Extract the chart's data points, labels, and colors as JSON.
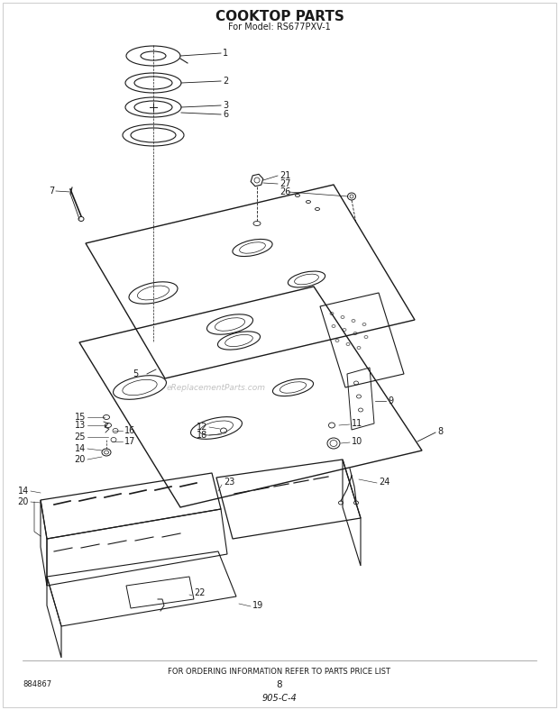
{
  "title": "COOKTOP PARTS",
  "subtitle": "For Model: RS677PXV-1",
  "footer_text": "FOR ORDERING INFORMATION REFER TO PARTS PRICE LIST",
  "bottom_left": "884867",
  "bottom_center": "8",
  "bottom_italic": "905-C-4",
  "watermark": "eReplacementParts.com",
  "bg_color": "#ffffff",
  "line_color": "#1a1a1a",
  "title_fontsize": 11,
  "subtitle_fontsize": 7,
  "footer_fontsize": 6,
  "label_fontsize": 7
}
